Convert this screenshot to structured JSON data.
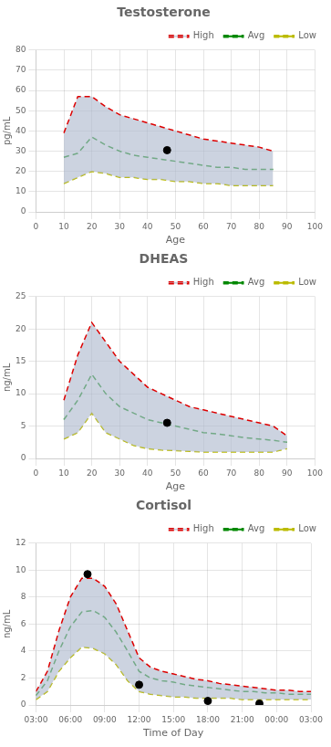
{
  "chart_data": [
    {
      "type": "line",
      "title": "Testosterone",
      "xlabel": "Age",
      "ylabel": "pg/mL",
      "x": [
        10,
        15,
        20,
        25,
        30,
        35,
        40,
        45,
        50,
        55,
        60,
        65,
        70,
        75,
        80,
        85
      ],
      "xlim": [
        0,
        100
      ],
      "ylim": [
        0,
        80
      ],
      "xticks": [
        0,
        10,
        20,
        30,
        40,
        50,
        60,
        70,
        80,
        90,
        100
      ],
      "yticks": [
        0,
        10,
        20,
        30,
        40,
        50,
        60,
        70,
        80
      ],
      "grid": true,
      "legend": "upper right",
      "color": "#b0bcd0",
      "series": [
        {
          "name": "High",
          "color": "#dd0000",
          "line_style": "dashed",
          "values": [
            39,
            57,
            57,
            52,
            48,
            46,
            44,
            42,
            40,
            38,
            36,
            35,
            34,
            33,
            32,
            30
          ]
        },
        {
          "name": "Avg",
          "color": "#008800",
          "line_style": "dashed",
          "values": [
            27,
            29,
            37,
            33,
            30,
            28,
            27,
            26,
            25,
            24,
            23,
            22,
            22,
            21,
            21,
            21
          ]
        },
        {
          "name": "Low",
          "color": "#bbbb00",
          "line_style": "dashed",
          "values": [
            14,
            17,
            20,
            19,
            17,
            17,
            16,
            16,
            15,
            15,
            14,
            14,
            13,
            13,
            13,
            13
          ]
        },
        {
          "type": "scatter",
          "color": "#000000",
          "marker": "circle",
          "x": [
            47
          ],
          "values": [
            30.5
          ]
        }
      ]
    },
    {
      "type": "line",
      "title": "DHEAS",
      "xlabel": "Age",
      "ylabel": "ng/mL",
      "x": [
        10,
        15,
        20,
        25,
        30,
        35,
        40,
        45,
        50,
        55,
        60,
        65,
        70,
        75,
        80,
        85,
        90
      ],
      "xlim": [
        0,
        100
      ],
      "ylim": [
        0,
        25
      ],
      "xticks": [
        0,
        10,
        20,
        30,
        40,
        50,
        60,
        70,
        80,
        90,
        100
      ],
      "yticks": [
        0,
        5,
        10,
        15,
        20,
        25
      ],
      "grid": true,
      "legend": "upper right",
      "color": "#b0bcd0",
      "series": [
        {
          "name": "High",
          "color": "#dd0000",
          "line_style": "dashed",
          "values": [
            9,
            16,
            21,
            18,
            15,
            13,
            11,
            10,
            9,
            8,
            7.5,
            7,
            6.5,
            6,
            5.5,
            5,
            3.5
          ]
        },
        {
          "name": "Avg",
          "color": "#008800",
          "line_style": "dashed",
          "values": [
            6,
            9,
            13,
            10,
            8,
            7,
            6,
            5.5,
            5,
            4.5,
            4,
            3.8,
            3.5,
            3.2,
            3,
            2.8,
            2.5
          ]
        },
        {
          "name": "Low",
          "color": "#bbbb00",
          "line_style": "dashed",
          "values": [
            3,
            4,
            7,
            4,
            3,
            2,
            1.5,
            1.3,
            1.2,
            1.1,
            1,
            1,
            1,
            1,
            1,
            1,
            1.5
          ]
        },
        {
          "type": "scatter",
          "color": "#000000",
          "marker": "circle",
          "x": [
            47
          ],
          "values": [
            5.5
          ]
        }
      ]
    },
    {
      "type": "line",
      "title": "Cortisol",
      "xlabel": "Time of Day",
      "ylabel": "ng/mL",
      "x": [
        3,
        4,
        5,
        6,
        7,
        8,
        9,
        10,
        11,
        12,
        13,
        14,
        15,
        16,
        17,
        18,
        19,
        20,
        21,
        22,
        23,
        24,
        25,
        26,
        27
      ],
      "xlim": [
        3,
        27
      ],
      "ylim": [
        0,
        12
      ],
      "xticks": [
        {
          "value": 3,
          "label": "03:00"
        },
        {
          "value": 6,
          "label": "06:00"
        },
        {
          "value": 9,
          "label": "09:00"
        },
        {
          "value": 12,
          "label": "12:00"
        },
        {
          "value": 15,
          "label": "15:00"
        },
        {
          "value": 18,
          "label": "18:00"
        },
        {
          "value": 21,
          "label": "21:00"
        },
        {
          "value": 24,
          "label": "00:00"
        },
        {
          "value": 27,
          "label": "03:00"
        }
      ],
      "yticks": [
        0,
        2,
        4,
        6,
        8,
        10,
        12
      ],
      "grid": true,
      "legend": "upper right",
      "color": "#b0bcd0",
      "series": [
        {
          "name": "High",
          "color": "#dd0000",
          "line_style": "dashed",
          "values": [
            1.0,
            2.5,
            5.5,
            8.0,
            9.4,
            9.4,
            8.8,
            7.5,
            5.5,
            3.5,
            2.8,
            2.5,
            2.3,
            2.1,
            1.9,
            1.8,
            1.6,
            1.5,
            1.4,
            1.3,
            1.2,
            1.1,
            1.1,
            1.0,
            1.0
          ]
        },
        {
          "name": "Avg",
          "color": "#008800",
          "line_style": "dashed",
          "values": [
            0.7,
            1.8,
            4.0,
            5.8,
            6.9,
            7.0,
            6.5,
            5.4,
            4.0,
            2.5,
            2.0,
            1.8,
            1.7,
            1.5,
            1.4,
            1.3,
            1.2,
            1.1,
            1.0,
            1.0,
            0.9,
            0.9,
            0.8,
            0.8,
            0.8
          ]
        },
        {
          "name": "Low",
          "color": "#bbbb00",
          "line_style": "dashed",
          "values": [
            0.4,
            1.0,
            2.5,
            3.5,
            4.3,
            4.2,
            3.8,
            3.0,
            1.8,
            1.0,
            0.8,
            0.7,
            0.6,
            0.6,
            0.5,
            0.5,
            0.5,
            0.5,
            0.4,
            0.4,
            0.4,
            0.4,
            0.4,
            0.4,
            0.4
          ]
        },
        {
          "type": "scatter",
          "color": "#000000",
          "marker": "circle",
          "x": [
            7.5,
            12.0,
            18.0,
            22.5
          ],
          "values": [
            9.7,
            1.5,
            0.3,
            0.1
          ]
        }
      ]
    }
  ]
}
